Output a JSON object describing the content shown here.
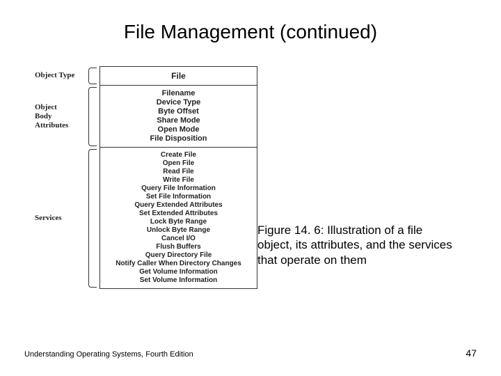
{
  "title": "File Management (continued)",
  "figure": {
    "labels": {
      "type": "Object Type",
      "attributes_l1": "Object",
      "attributes_l2": "Body",
      "attributes_l3": "Attributes",
      "services": "Services"
    },
    "type_value": "File",
    "attributes": {
      "a0": "Filename",
      "a1": "Device Type",
      "a2": "Byte Offset",
      "a3": "Share Mode",
      "a4": "Open Mode",
      "a5": "File Disposition"
    },
    "services": {
      "s0": "Create File",
      "s1": "Open File",
      "s2": "Read File",
      "s3": "Write File",
      "s4": "Query File Information",
      "s5": "Set File Information",
      "s6": "Query Extended Attributes",
      "s7": "Set Extended Attributes",
      "s8": "Lock Byte Range",
      "s9": "Unlock Byte Range",
      "s10": "Cancel I/O",
      "s11": "Flush Buffers",
      "s12": "Query Directory File",
      "s13": "Notify Caller When Directory Changes",
      "s14": "Get Volume Information",
      "s15": "Set Volume Information"
    }
  },
  "caption": "Figure 14. 6: Illustration of a file object, its attributes, and the services that operate on them",
  "footer": {
    "left": "Understanding Operating Systems, Fourth Edition",
    "page": "47"
  }
}
